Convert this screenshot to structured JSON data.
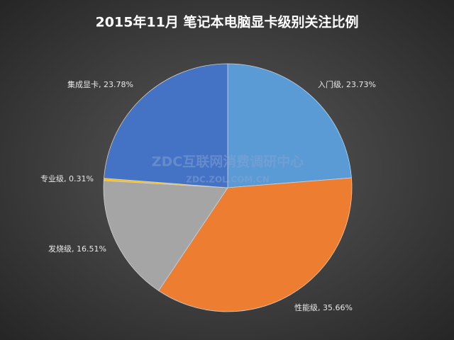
{
  "chart_data": {
    "type": "pie",
    "title": "2015年11月  笔记本电脑显卡级别关注比例",
    "categories": [
      "入门级",
      "性能级",
      "发烧级",
      "专业级",
      "集成显卡"
    ],
    "values": [
      23.73,
      35.66,
      16.51,
      0.31,
      23.78
    ],
    "value_labels": [
      "入门级, 23.73%",
      "性能级, 35.66%",
      "发烧级, 16.51%",
      "专业级, 0.31%",
      "集成显卡, 23.78%"
    ],
    "colors": [
      "#5b9bd5",
      "#ed7d31",
      "#a5a5a5",
      "#ffc000",
      "#4472c4"
    ],
    "watermark": [
      "ZDC互联网消费调研中心",
      "ZDC.ZOL.COM.CN"
    ]
  }
}
